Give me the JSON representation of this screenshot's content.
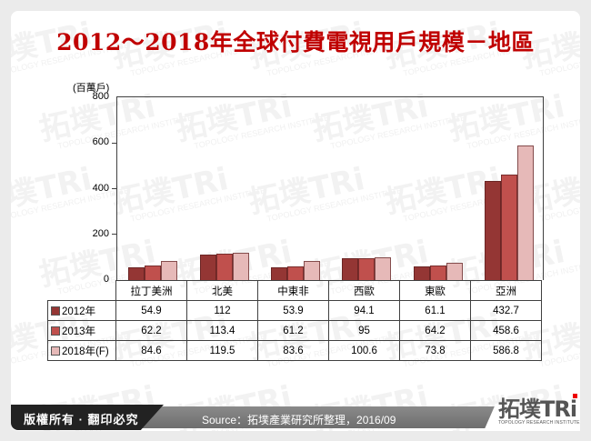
{
  "title": "2012～2018年全球付費電視用戶規模－地區",
  "chart_data": {
    "type": "bar",
    "title": "2012～2018年全球付費電視用戶規模－地區",
    "ylabel": "(百萬戶)",
    "xlabel": "",
    "ylim": [
      0,
      800
    ],
    "yticks": [
      "0",
      "200",
      "400",
      "600",
      "800"
    ],
    "grid": false,
    "legend_position": "data-table-left",
    "categories": [
      "拉丁美洲",
      "北美",
      "中東非",
      "西歐",
      "東歐",
      "亞洲"
    ],
    "series": [
      {
        "name": "2012年",
        "color": "#943634",
        "values": [
          54.9,
          112,
          53.9,
          94.1,
          61.1,
          432.7
        ]
      },
      {
        "name": "2013年",
        "color": "#c0504d",
        "values": [
          62.2,
          113.4,
          61.2,
          95,
          64.2,
          458.6
        ]
      },
      {
        "name": "2018年(F)",
        "color": "#e6b9b8",
        "values": [
          84.6,
          119.5,
          83.6,
          100.6,
          73.8,
          586.8
        ]
      }
    ]
  },
  "table": {
    "rows": [
      {
        "label": "2012年",
        "cells": [
          "54.9",
          "112",
          "53.9",
          "94.1",
          "61.1",
          "432.7"
        ]
      },
      {
        "label": "2013年",
        "cells": [
          "62.2",
          "113.4",
          "61.2",
          "95",
          "64.2",
          "458.6"
        ]
      },
      {
        "label": "2018年(F)",
        "cells": [
          "84.6",
          "119.5",
          "83.6",
          "100.6",
          "73.8",
          "586.8"
        ]
      }
    ]
  },
  "footer": {
    "copyright": "版權所有 · 翻印必究",
    "source": "Source：拓墣產業研究所整理，2016/09",
    "logo_main": "拓墣TRi",
    "logo_sub": "TOPOLOGY RESEARCH INSTITUTE"
  },
  "watermark": {
    "text": "拓墣TRi",
    "sub": "TOPOLOGY RESEARCH INSTITUTE"
  },
  "colors": {
    "title": "#c00000",
    "s2012": "#943634",
    "s2013": "#c0504d",
    "s2018": "#e6b9b8"
  }
}
